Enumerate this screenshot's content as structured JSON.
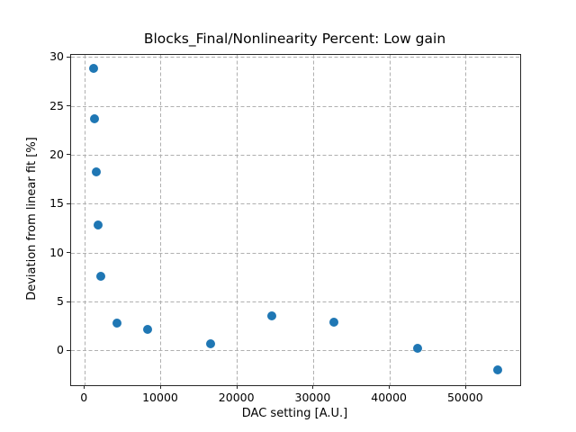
{
  "chart_data": {
    "type": "scatter",
    "title": "Blocks_Final/Nonlinearity Percent: Low gain",
    "xlabel": "DAC setting [A.U.]",
    "ylabel": "Deviation from linear fit [%]",
    "xlim": [
      -1800,
      57100
    ],
    "ylim": [
      -3.5,
      30.25
    ],
    "x_ticks": [
      0,
      10000,
      20000,
      30000,
      40000,
      50000
    ],
    "y_ticks": [
      0,
      5,
      10,
      15,
      20,
      25,
      30
    ],
    "grid": true,
    "grid_line_style": "dashed",
    "grid_color": "#b0b0b0",
    "background_color": "#ffffff",
    "marker_color": "#1f77b4",
    "marker_diameter_px": 10,
    "legend": "none",
    "points": [
      {
        "x": 1100,
        "y": 28.9
      },
      {
        "x": 1250,
        "y": 23.7
      },
      {
        "x": 1500,
        "y": 18.3
      },
      {
        "x": 1800,
        "y": 12.9
      },
      {
        "x": 2100,
        "y": 7.6
      },
      {
        "x": 4200,
        "y": 2.8
      },
      {
        "x": 8250,
        "y": 2.2
      },
      {
        "x": 16450,
        "y": 0.7
      },
      {
        "x": 24550,
        "y": 3.6
      },
      {
        "x": 32650,
        "y": 2.9
      },
      {
        "x": 43600,
        "y": 0.3
      },
      {
        "x": 54200,
        "y": -1.9
      }
    ]
  }
}
